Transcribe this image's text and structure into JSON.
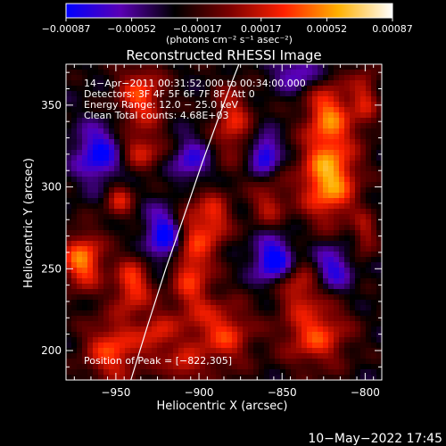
{
  "chart_data": {
    "type": "heatmap",
    "title": "Reconstructed RHESSI Image",
    "xlabel": "Heliocentric X (arcsec)",
    "ylabel": "Heliocentric Y (arcsec)",
    "xlim": [
      -980,
      -790
    ],
    "ylim": [
      182,
      375
    ],
    "xticks": [
      -950,
      -900,
      -850,
      -800
    ],
    "xtick_labels": [
      "−950",
      "−900",
      "−850",
      "−800"
    ],
    "yticks": [
      200,
      250,
      300,
      350
    ],
    "ytick_labels": [
      "200",
      "250",
      "300",
      "350"
    ],
    "colorbar": {
      "min": -0.00087,
      "max": 0.00087,
      "ticks": [
        -0.00087,
        -0.00052,
        -0.00017,
        0.00017,
        0.00052,
        0.00087
      ],
      "tick_labels": [
        "−0.00087",
        "−0.00052",
        "−0.00017",
        "0.00017",
        "0.00052",
        "0.00087"
      ],
      "unit_label": "(photons cm⁻² s⁻¹ asec⁻²)",
      "colormap": [
        "#0000ff",
        "#5a00b4",
        "#000000",
        "#7a0000",
        "#ff2000",
        "#ffb000",
        "#ffffff"
      ]
    },
    "annotations": [
      "14−Apr−2011 00:31:52.000 to 00:34:00.000",
      "Detectors: 3F 4F 5F 6F 7F 8F, Att 0",
      "Energy Range: 12.0 − 25.0 keV",
      "Clean     Total counts: 4.68E+03"
    ],
    "peak_label": "Position of Peak = [−822,305]",
    "peak": {
      "x": -822,
      "y": 305
    },
    "limb_curve": {
      "x": [
        -941,
        -931,
        -920,
        -908,
        -898,
        -889,
        -881,
        -876
      ],
      "y": [
        182,
        215,
        250,
        285,
        315,
        340,
        362,
        375
      ]
    },
    "hotspots": [
      {
        "x": -822,
        "y": 305,
        "sx": 12,
        "sy": 18,
        "amp": 0.00087
      },
      {
        "x": -822,
        "y": 345,
        "sx": 10,
        "sy": 14,
        "amp": 0.00065
      },
      {
        "x": -858,
        "y": 290,
        "sx": 8,
        "sy": 10,
        "amp": 0.0004
      },
      {
        "x": -970,
        "y": 255,
        "sx": 9,
        "sy": 12,
        "amp": 0.00075
      },
      {
        "x": -940,
        "y": 240,
        "sx": 8,
        "sy": 12,
        "amp": 0.0006
      },
      {
        "x": -948,
        "y": 292,
        "sx": 6,
        "sy": 8,
        "amp": 0.00045
      },
      {
        "x": -952,
        "y": 200,
        "sx": 12,
        "sy": 14,
        "amp": 0.0006
      },
      {
        "x": -925,
        "y": 210,
        "sx": 8,
        "sy": 10,
        "amp": 0.00045
      },
      {
        "x": -935,
        "y": 355,
        "sx": 10,
        "sy": 14,
        "amp": 0.0006
      },
      {
        "x": -935,
        "y": 322,
        "sx": 10,
        "sy": 8,
        "amp": 0.00045
      },
      {
        "x": -905,
        "y": 255,
        "sx": 9,
        "sy": 28,
        "amp": 0.0006
      },
      {
        "x": -890,
        "y": 280,
        "sx": 7,
        "sy": 12,
        "amp": 0.00045
      },
      {
        "x": -880,
        "y": 340,
        "sx": 8,
        "sy": 16,
        "amp": 0.0005
      },
      {
        "x": -885,
        "y": 210,
        "sx": 12,
        "sy": 14,
        "amp": 0.00055
      },
      {
        "x": -830,
        "y": 210,
        "sx": 14,
        "sy": 14,
        "amp": 0.0006
      },
      {
        "x": -840,
        "y": 240,
        "sx": 10,
        "sy": 10,
        "amp": 0.00045
      },
      {
        "x": -800,
        "y": 355,
        "sx": 6,
        "sy": 14,
        "amp": 0.0004
      },
      {
        "x": -800,
        "y": 270,
        "sx": 5,
        "sy": 10,
        "amp": 0.00035
      },
      {
        "x": -910,
        "y": 190,
        "sx": 8,
        "sy": 8,
        "amp": 0.0004
      },
      {
        "x": -860,
        "y": 320,
        "sx": 6,
        "sy": 8,
        "amp": -0.0006
      },
      {
        "x": -920,
        "y": 270,
        "sx": 8,
        "sy": 12,
        "amp": -0.0007
      },
      {
        "x": -960,
        "y": 320,
        "sx": 10,
        "sy": 12,
        "amp": -0.0006
      },
      {
        "x": -855,
        "y": 255,
        "sx": 8,
        "sy": 10,
        "amp": -0.0007
      },
      {
        "x": -905,
        "y": 315,
        "sx": 8,
        "sy": 10,
        "amp": -0.0005
      },
      {
        "x": -820,
        "y": 250,
        "sx": 8,
        "sy": 10,
        "amp": -0.0005
      },
      {
        "x": -840,
        "y": 370,
        "sx": 10,
        "sy": 8,
        "amp": -0.0004
      }
    ]
  },
  "footer": {
    "timestamp": "10−May−2022 17:45"
  }
}
